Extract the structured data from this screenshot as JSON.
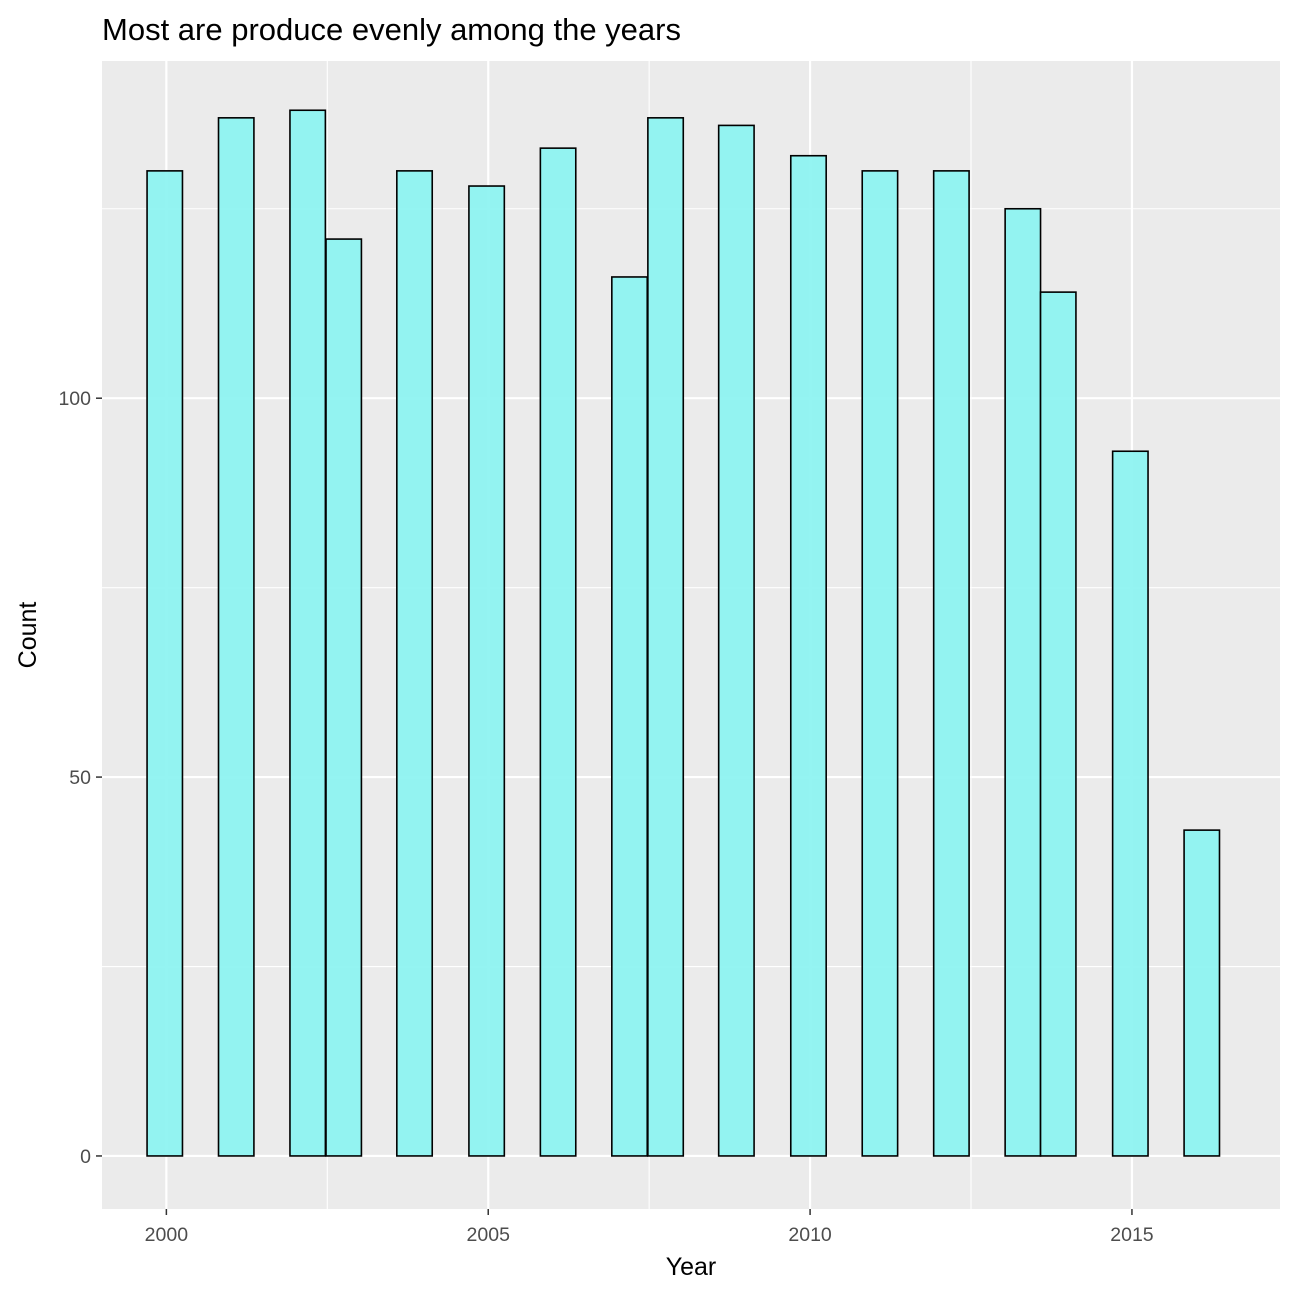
{
  "chart_data": {
    "type": "bar",
    "title": "Most are produce evenly among the years",
    "xlabel": "Year",
    "ylabel": "Count",
    "x_ticks": [
      "2000",
      "2005",
      "2010",
      "2015"
    ],
    "y_ticks": [
      "0",
      "50",
      "100"
    ],
    "xlim": [
      1999.0,
      2017.3
    ],
    "ylim": [
      -7,
      144.5
    ],
    "bin_width": 0.55,
    "bins": [
      {
        "start": 1999.7,
        "value": 130
      },
      {
        "start": 2000.81,
        "value": 137
      },
      {
        "start": 2001.92,
        "value": 138
      },
      {
        "start": 2002.48,
        "value": 121
      },
      {
        "start": 2003.58,
        "value": 130
      },
      {
        "start": 2004.7,
        "value": 128
      },
      {
        "start": 2005.81,
        "value": 133
      },
      {
        "start": 2006.92,
        "value": 116
      },
      {
        "start": 2007.48,
        "value": 137
      },
      {
        "start": 2008.58,
        "value": 136
      },
      {
        "start": 2009.7,
        "value": 132
      },
      {
        "start": 2010.81,
        "value": 130
      },
      {
        "start": 2011.92,
        "value": 130
      },
      {
        "start": 2013.03,
        "value": 125
      },
      {
        "start": 2013.58,
        "value": 114
      },
      {
        "start": 2014.7,
        "value": 93
      },
      {
        "start": 2015.81,
        "value": 43
      }
    ],
    "grid": true,
    "colors": {
      "panel": "#ebebeb",
      "grid_major": "#ffffff",
      "bar_fill": "#8ef3f1",
      "bar_stroke": "#000000",
      "tick": "#333333"
    }
  }
}
